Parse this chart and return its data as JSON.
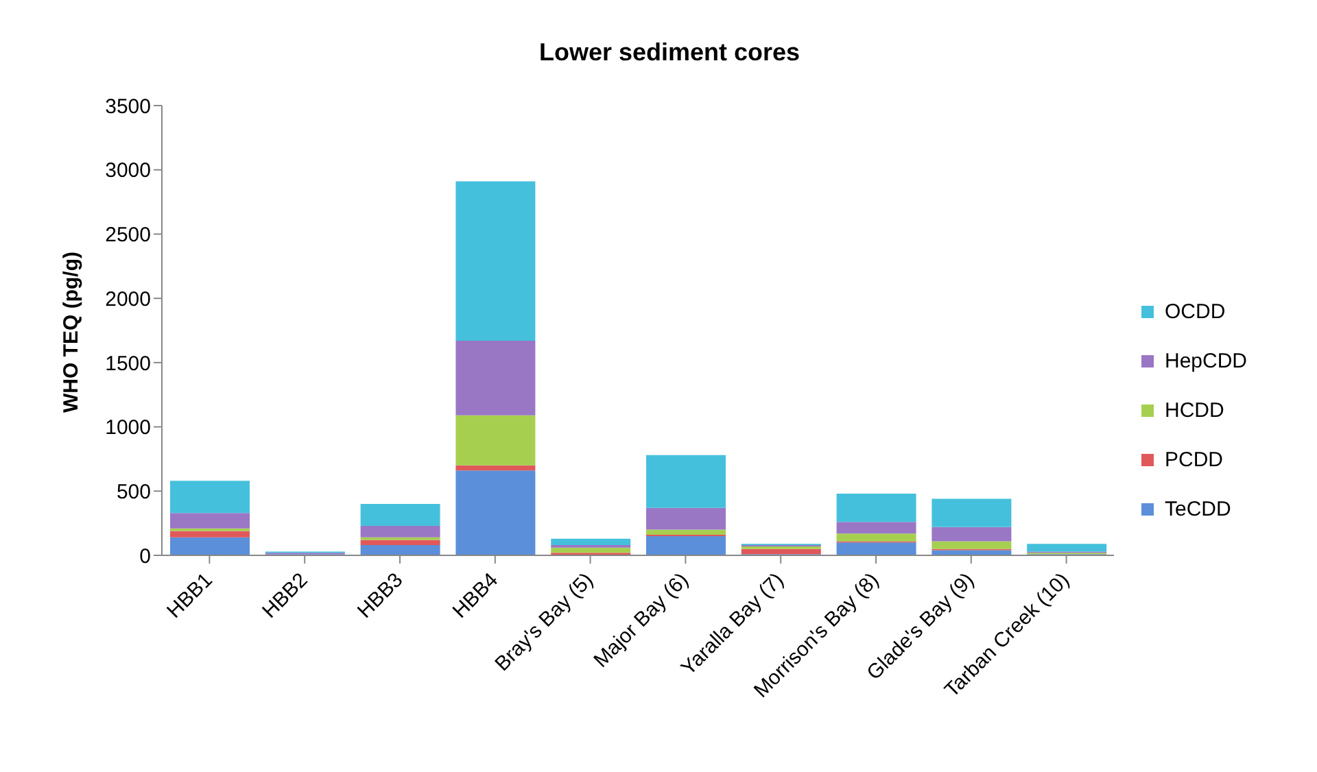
{
  "chart_data": {
    "type": "bar",
    "title": "Lower sediment cores",
    "ylabel": "WHO TEQ (pg/g)",
    "stacked": true,
    "legend": "right",
    "grid": false,
    "categories": [
      "HBB1",
      "HBB2",
      "HBB3",
      "HBB4",
      "Bray's Bay (5)",
      "Major Bay (6)",
      "Yaralla Bay (7)",
      "Morrison's Bay (8)",
      "Glade's Bay (9)",
      "Tarban Creek (10)"
    ],
    "ylim": [
      0,
      3500
    ],
    "yticks": [
      0,
      500,
      1000,
      1500,
      2000,
      2500,
      3000,
      3500
    ],
    "series": [
      {
        "name": "TeCDD",
        "color": "#5b8fd9",
        "values": [
          140,
          10,
          80,
          660,
          0,
          150,
          10,
          100,
          40,
          10
        ]
      },
      {
        "name": "PCDD",
        "color": "#e0585a",
        "values": [
          50,
          0,
          40,
          40,
          20,
          10,
          40,
          10,
          10,
          0
        ]
      },
      {
        "name": "HCDD",
        "color": "#a6cf4f",
        "values": [
          20,
          0,
          20,
          390,
          40,
          40,
          20,
          60,
          60,
          10
        ]
      },
      {
        "name": "HepCDD",
        "color": "#9a77c4",
        "values": [
          120,
          10,
          90,
          580,
          20,
          170,
          10,
          90,
          110,
          10
        ]
      },
      {
        "name": "OCDD",
        "color": "#45c0dc",
        "values": [
          250,
          10,
          170,
          1240,
          50,
          410,
          10,
          220,
          220,
          60
        ]
      }
    ]
  }
}
